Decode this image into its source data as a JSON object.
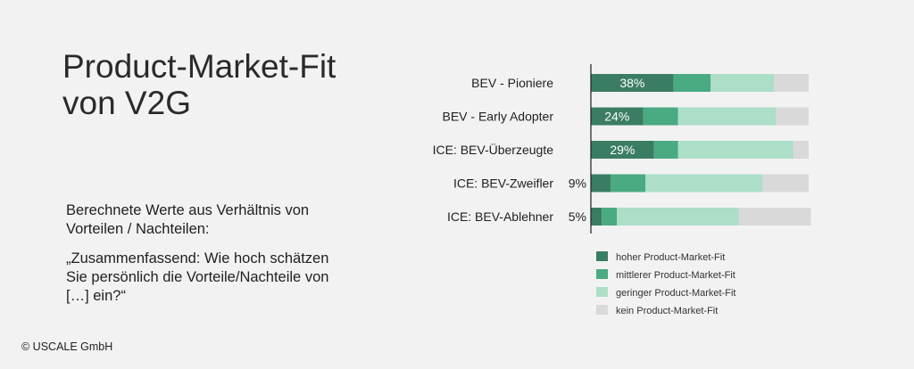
{
  "heading": {
    "line1": "Product-Market-Fit",
    "line2": "von V2G"
  },
  "description": {
    "para1": "Berechnete Werte aus Verhältnis von Vorteilen / Nachteilen:",
    "para2": "„Zusammenfassend: Wie hoch schätzen Sie persönlich die Vorteile/Nachteile von […] ein?“"
  },
  "footer": {
    "copyright": "© USCALE GmbH"
  },
  "colors": {
    "hoher": "#3a7d62",
    "mittlerer": "#4aaa82",
    "geringer": "#acdec8",
    "kein": "#d9d9d9",
    "axis": "#1f1f1f"
  },
  "chart_data": {
    "type": "bar",
    "orientation": "horizontal",
    "stacked": true,
    "categories": [
      "BEV - Pioniere",
      "BEV - Early Adopter",
      "ICE: BEV-Überzeugte",
      "ICE: BEV-Zweifler",
      "ICE: BEV-Ablehner"
    ],
    "series": [
      {
        "name": "hoher Product-Market-Fit",
        "color_key": "hoher",
        "values": [
          38,
          24,
          29,
          9,
          5
        ]
      },
      {
        "name": "mittlerer Product-Market-Fit",
        "color_key": "mittlerer",
        "values": [
          17,
          16,
          11,
          16,
          7
        ]
      },
      {
        "name": "geringer Product-Market-Fit",
        "color_key": "geringer",
        "values": [
          29,
          45,
          53,
          54,
          56
        ]
      },
      {
        "name": "kein Product-Market-Fit",
        "color_key": "kein",
        "values": [
          16,
          15,
          7,
          21,
          33
        ]
      }
    ],
    "data_labels": [
      "38%",
      "24%",
      "29%",
      "9%",
      "5%"
    ],
    "xlim": [
      0,
      100
    ],
    "grid": false,
    "legend_position": "bottom"
  }
}
